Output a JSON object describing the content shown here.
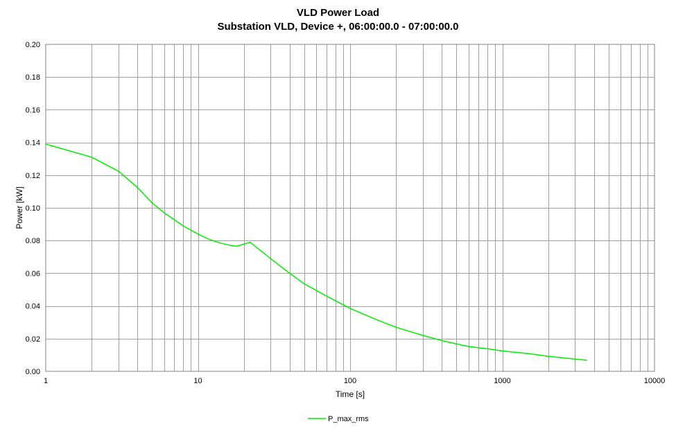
{
  "chart_data": {
    "type": "line",
    "title": "VLD Power Load",
    "subtitle": "Substation VLD, Device +, 06:00:00.0 - 07:00:00.0",
    "xlabel": "Time [s]",
    "ylabel": "Power [kW]",
    "xscale": "log",
    "xlim": [
      1,
      10000
    ],
    "ylim": [
      0,
      0.2
    ],
    "xticks": [
      "1",
      "10",
      "100",
      "1000",
      "10000"
    ],
    "yticks": [
      "0.00",
      "0.02",
      "0.04",
      "0.06",
      "0.08",
      "0.10",
      "0.12",
      "0.14",
      "0.16",
      "0.18",
      "0.20"
    ],
    "grid": true,
    "legend_position": "bottom-center",
    "series": [
      {
        "name": "P_max_rms",
        "color": "#00ee00",
        "x": [
          1,
          2,
          3,
          4,
          5,
          6,
          8,
          10,
          12,
          14,
          16,
          18,
          20,
          22,
          30,
          40,
          50,
          70,
          100,
          150,
          200,
          300,
          400,
          500,
          600,
          800,
          1000,
          1500,
          2000,
          3000,
          3600
        ],
        "y": [
          0.139,
          0.131,
          0.1225,
          0.1125,
          0.103,
          0.097,
          0.089,
          0.084,
          0.0805,
          0.0785,
          0.0772,
          0.0765,
          0.0778,
          0.079,
          0.069,
          0.06,
          0.0535,
          0.046,
          0.0385,
          0.0315,
          0.027,
          0.022,
          0.0188,
          0.0168,
          0.0152,
          0.0138,
          0.0125,
          0.0108,
          0.0092,
          0.0075,
          0.0068
        ]
      }
    ]
  }
}
